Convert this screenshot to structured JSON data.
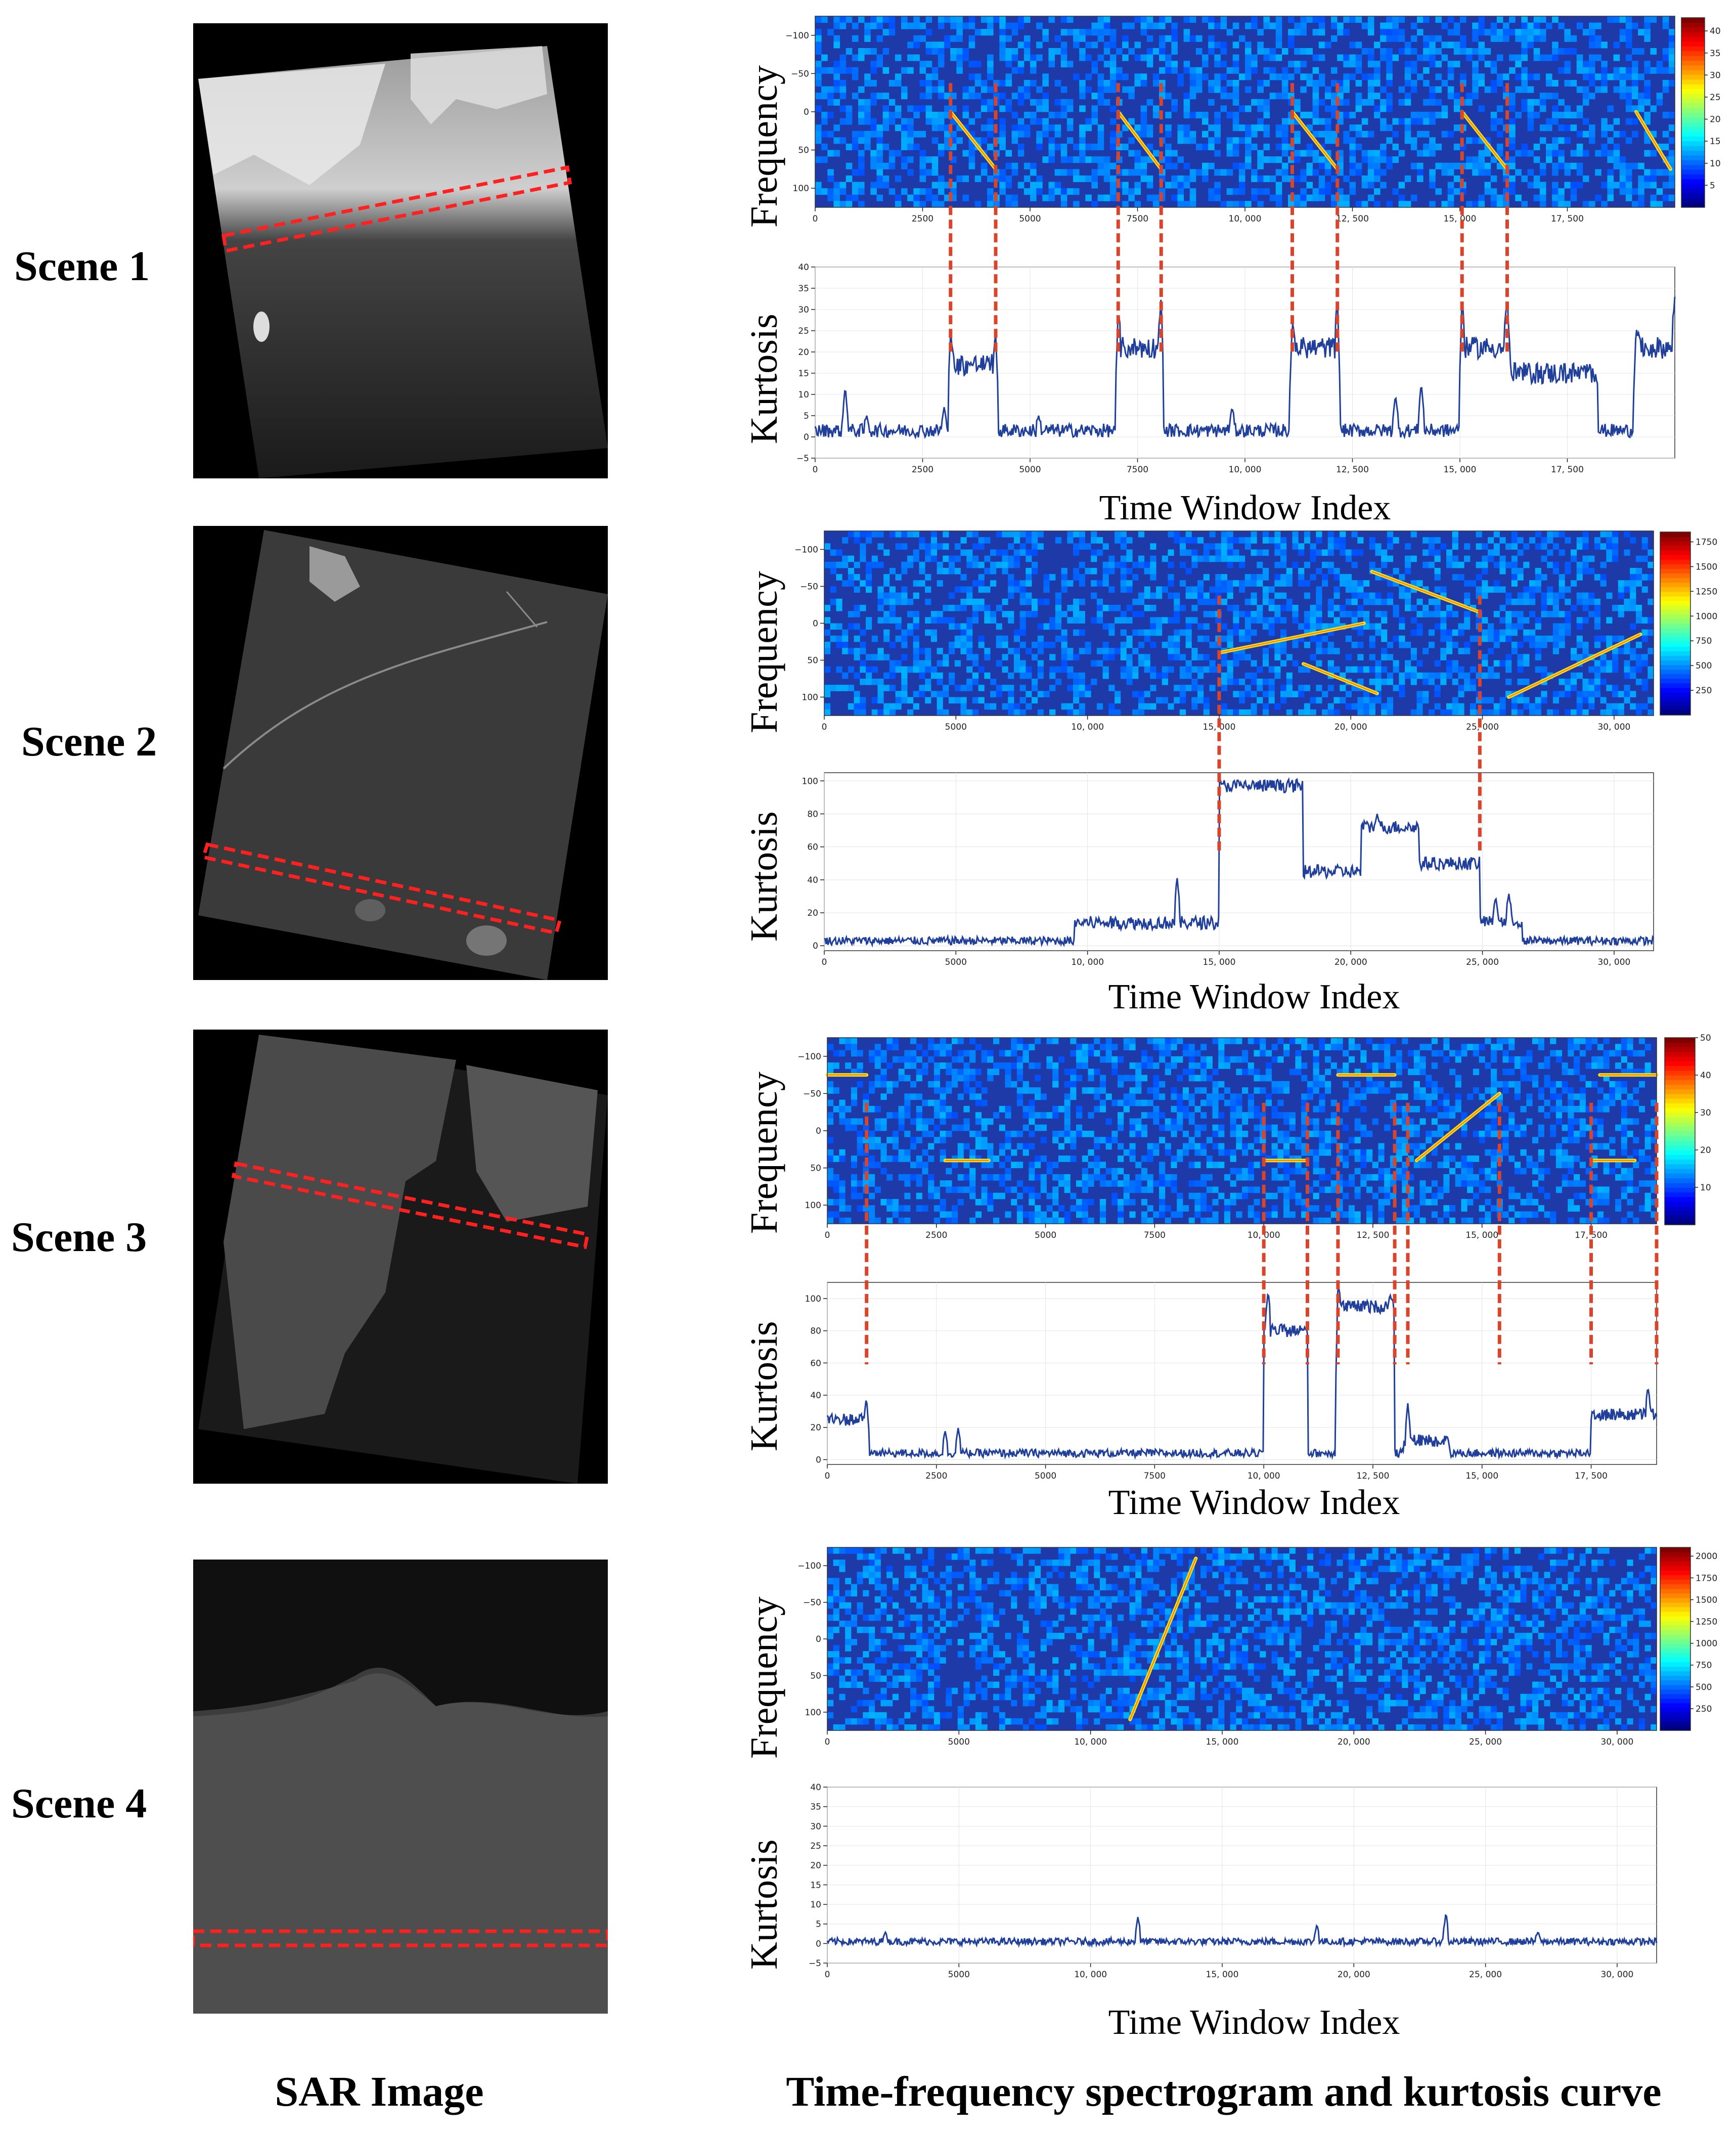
{
  "bottom_labels": {
    "left": "SAR Image",
    "right": "Time-frequency spectrogram and kurtosis curve"
  },
  "axis_text": {
    "frequency": "Frequency",
    "kurtosis": "Kurtosis",
    "time_window_index": "Time Window Index"
  },
  "scenes": [
    {
      "label": "Scene 1",
      "spectrogram": {
        "type": "heatmap",
        "ylabel": "Frequency",
        "x_range": [
          0,
          20000
        ],
        "x_ticks": [
          0,
          2500,
          5000,
          7500,
          10000,
          12500,
          15000,
          17500
        ],
        "x_tick_labels": [
          "0",
          "2500",
          "5000",
          "7500",
          "10, 000",
          "12, 500",
          "15, 000",
          "17, 500"
        ],
        "y_range": [
          -125,
          125
        ],
        "y_ticks": [
          -100,
          -50,
          0,
          50,
          100
        ],
        "y_tick_labels": [
          "−100",
          "−50",
          "0",
          "50",
          "100"
        ],
        "colorbar_ticks": [
          "5",
          "10",
          "15",
          "20",
          "25",
          "30",
          "35",
          "40"
        ],
        "colorbar_range": [
          0,
          43
        ],
        "bright_lines": [
          [
            3150,
            0,
            4200,
            75
          ],
          [
            7050,
            0,
            8050,
            75
          ],
          [
            11100,
            0,
            12150,
            75
          ],
          [
            15050,
            0,
            16100,
            75
          ],
          [
            19100,
            0,
            19900,
            75
          ]
        ]
      },
      "kurtosis": {
        "type": "line",
        "ylabel": "Kurtosis",
        "xlabel": "Time Window Index",
        "x_range": [
          0,
          20000
        ],
        "x_ticks": [
          0,
          2500,
          5000,
          7500,
          10000,
          12500,
          15000,
          17500
        ],
        "x_tick_labels": [
          "0",
          "2500",
          "5000",
          "7500",
          "10, 000",
          "12, 500",
          "15, 000",
          "17, 500"
        ],
        "y_range": [
          -5,
          40
        ],
        "y_ticks": [
          -5,
          0,
          5,
          10,
          15,
          20,
          25,
          30,
          35,
          40
        ],
        "y_tick_labels": [
          "−5",
          "0",
          "5",
          "10",
          "15",
          "20",
          "25",
          "30",
          "35",
          "40"
        ],
        "base_level": 1.5,
        "noise": 1.6,
        "plateaus": [
          [
            3150,
            4200,
            17
          ],
          [
            7050,
            8050,
            21
          ],
          [
            11100,
            12150,
            21
          ],
          [
            15050,
            16100,
            21
          ],
          [
            16100,
            18200,
            15
          ],
          [
            19100,
            20000,
            21
          ]
        ],
        "spikes": [
          [
            3150,
            25
          ],
          [
            4200,
            24
          ],
          [
            7050,
            30
          ],
          [
            8050,
            33
          ],
          [
            11100,
            27
          ],
          [
            12150,
            33
          ],
          [
            15050,
            33
          ],
          [
            16100,
            33
          ],
          [
            19100,
            26
          ],
          [
            20000,
            33
          ],
          [
            700,
            12
          ],
          [
            1200,
            5
          ],
          [
            3000,
            7
          ],
          [
            5200,
            5
          ],
          [
            9700,
            7
          ],
          [
            13500,
            10
          ],
          [
            14100,
            13
          ]
        ],
        "markers": [
          3150,
          4200,
          7050,
          8050,
          11100,
          12150,
          15050,
          16100
        ]
      }
    },
    {
      "label": "Scene 2",
      "spectrogram": {
        "type": "heatmap",
        "ylabel": "Frequency",
        "x_range": [
          0,
          31500
        ],
        "x_ticks": [
          0,
          5000,
          10000,
          15000,
          20000,
          25000,
          30000
        ],
        "x_tick_labels": [
          "0",
          "5000",
          "10, 000",
          "15, 000",
          "20, 000",
          "25, 000",
          "30, 000"
        ],
        "y_range": [
          -125,
          125
        ],
        "y_ticks": [
          -100,
          -50,
          0,
          50,
          100
        ],
        "y_tick_labels": [
          "−100",
          "−50",
          "0",
          "50",
          "100"
        ],
        "colorbar_ticks": [
          "250",
          "500",
          "750",
          "1000",
          "1250",
          "1500",
          "1750"
        ],
        "colorbar_range": [
          0,
          1850
        ],
        "bright_lines": [
          [
            15000,
            40,
            20500,
            0
          ],
          [
            18200,
            55,
            21000,
            95
          ],
          [
            20800,
            -70,
            24900,
            -15
          ],
          [
            26000,
            100,
            31000,
            15
          ]
        ]
      },
      "kurtosis": {
        "type": "line",
        "ylabel": "Kurtosis",
        "xlabel": "Time Window Index",
        "x_range": [
          0,
          31500
        ],
        "x_ticks": [
          0,
          5000,
          10000,
          15000,
          20000,
          25000,
          30000
        ],
        "x_tick_labels": [
          "0",
          "5000",
          "10, 000",
          "15, 000",
          "20, 000",
          "25, 000",
          "30, 000"
        ],
        "y_range": [
          -3,
          105
        ],
        "y_ticks": [
          0,
          20,
          40,
          60,
          80,
          100
        ],
        "y_tick_labels": [
          "0",
          "20",
          "40",
          "60",
          "80",
          "100"
        ],
        "base_level": 3,
        "noise": 2.5,
        "plateaus": [
          [
            9500,
            15000,
            14
          ],
          [
            15000,
            18200,
            97
          ],
          [
            18200,
            20400,
            45
          ],
          [
            20400,
            22600,
            72
          ],
          [
            22600,
            24900,
            50
          ],
          [
            24900,
            26500,
            15
          ]
        ],
        "spikes": [
          [
            13400,
            42
          ],
          [
            14700,
            14
          ],
          [
            20600,
            74
          ],
          [
            21000,
            80
          ],
          [
            25500,
            30
          ],
          [
            26000,
            32
          ]
        ],
        "markers": [
          15000,
          24900
        ]
      }
    },
    {
      "label": "Scene 3",
      "spectrogram": {
        "type": "heatmap",
        "ylabel": "Frequency",
        "x_range": [
          0,
          19000
        ],
        "x_ticks": [
          0,
          2500,
          5000,
          7500,
          10000,
          12500,
          15000,
          17500
        ],
        "x_tick_labels": [
          "0",
          "2500",
          "5000",
          "7500",
          "10, 000",
          "12, 500",
          "15, 000",
          "17, 500"
        ],
        "y_range": [
          -125,
          125
        ],
        "y_ticks": [
          -100,
          -50,
          0,
          50,
          100
        ],
        "y_tick_labels": [
          "−100",
          "−50",
          "0",
          "50",
          "100"
        ],
        "colorbar_ticks": [
          "10",
          "20",
          "30",
          "40",
          "50"
        ],
        "colorbar_range": [
          0,
          50
        ],
        "bright_lines": [
          [
            0,
            -75,
            900,
            -75
          ],
          [
            2700,
            40,
            3700,
            40
          ],
          [
            10000,
            40,
            11000,
            40
          ],
          [
            11700,
            -75,
            13000,
            -75
          ],
          [
            17500,
            40,
            18500,
            40
          ],
          [
            17700,
            -75,
            19000,
            -75
          ],
          [
            13500,
            40,
            15400,
            -50
          ]
        ]
      },
      "kurtosis": {
        "type": "line",
        "ylabel": "Kurtosis",
        "xlabel": "Time Window Index",
        "x_range": [
          0,
          19000
        ],
        "x_ticks": [
          0,
          2500,
          5000,
          7500,
          10000,
          12500,
          15000,
          17500
        ],
        "x_tick_labels": [
          "0",
          "2500",
          "5000",
          "7500",
          "10, 000",
          "12, 500",
          "15, 000",
          "17, 500"
        ],
        "y_range": [
          -3,
          110
        ],
        "y_ticks": [
          0,
          20,
          40,
          60,
          80,
          100
        ],
        "y_tick_labels": [
          "0",
          "20",
          "40",
          "60",
          "80",
          "100"
        ],
        "base_level": 4,
        "noise": 2.5,
        "plateaus": [
          [
            0,
            900,
            25
          ],
          [
            10000,
            11000,
            80
          ],
          [
            11700,
            13000,
            95
          ],
          [
            13200,
            14200,
            12
          ],
          [
            17500,
            19000,
            28
          ]
        ],
        "spikes": [
          [
            900,
            38
          ],
          [
            2700,
            18
          ],
          [
            3000,
            20
          ],
          [
            10100,
            105
          ],
          [
            11700,
            110
          ],
          [
            12900,
            102
          ],
          [
            13300,
            35
          ],
          [
            14200,
            15
          ],
          [
            18800,
            45
          ]
        ],
        "markers": [
          900,
          10000,
          11000,
          11700,
          13000,
          13300,
          15400,
          17500,
          19000
        ]
      }
    },
    {
      "label": "Scene 4",
      "spectrogram": {
        "type": "heatmap",
        "ylabel": "Frequency",
        "x_range": [
          0,
          31500
        ],
        "x_ticks": [
          0,
          5000,
          10000,
          15000,
          20000,
          25000,
          30000
        ],
        "x_tick_labels": [
          "0",
          "5000",
          "10, 000",
          "15, 000",
          "20, 000",
          "25, 000",
          "30, 000"
        ],
        "y_range": [
          -125,
          125
        ],
        "y_ticks": [
          -100,
          -50,
          0,
          50,
          100
        ],
        "y_tick_labels": [
          "−100",
          "−50",
          "0",
          "50",
          "100"
        ],
        "colorbar_ticks": [
          "250",
          "500",
          "750",
          "1000",
          "1250",
          "1500",
          "1750",
          "2000"
        ],
        "colorbar_range": [
          0,
          2100
        ],
        "bright_lines": [
          [
            11500,
            110,
            14000,
            -110
          ]
        ]
      },
      "kurtosis": {
        "type": "line",
        "ylabel": "Kurtosis",
        "xlabel": "Time Window Index",
        "x_range": [
          0,
          31500
        ],
        "x_ticks": [
          0,
          5000,
          10000,
          15000,
          20000,
          25000,
          30000
        ],
        "x_tick_labels": [
          "0",
          "5000",
          "10, 000",
          "15, 000",
          "20, 000",
          "25, 000",
          "30, 000"
        ],
        "y_range": [
          -5,
          40
        ],
        "y_ticks": [
          -5,
          0,
          5,
          10,
          15,
          20,
          25,
          30,
          35,
          40
        ],
        "y_tick_labels": [
          "−5",
          "0",
          "5",
          "10",
          "15",
          "20",
          "25",
          "30",
          "35",
          "40"
        ],
        "base_level": 0.5,
        "noise": 0.9,
        "plateaus": [],
        "spikes": [
          [
            11800,
            7
          ],
          [
            18600,
            5
          ],
          [
            23500,
            8
          ],
          [
            2200,
            3
          ],
          [
            27000,
            3
          ]
        ],
        "markers": []
      }
    }
  ]
}
